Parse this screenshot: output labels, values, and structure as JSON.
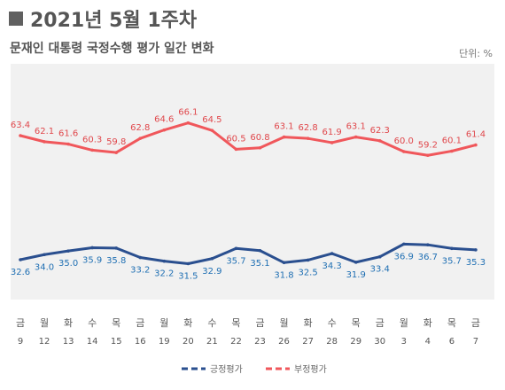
{
  "header": {
    "title": "2021년 5월 1주차",
    "subtitle": "문재인 대통령 국정수행 평가 일간 변화",
    "unit": "단위: %"
  },
  "colors": {
    "positive": "#2a4f8f",
    "negative": "#f0575b",
    "positive_label": "#1f6fb3",
    "negative_label": "#e0474b",
    "plot_bg": "#f1f1f1"
  },
  "chart_data": {
    "type": "line",
    "categories": [
      {
        "day": "금",
        "date": "9"
      },
      {
        "day": "월",
        "date": "12"
      },
      {
        "day": "화",
        "date": "13"
      },
      {
        "day": "수",
        "date": "14"
      },
      {
        "day": "목",
        "date": "15"
      },
      {
        "day": "금",
        "date": "16"
      },
      {
        "day": "월",
        "date": "19"
      },
      {
        "day": "화",
        "date": "20"
      },
      {
        "day": "수",
        "date": "21"
      },
      {
        "day": "목",
        "date": "22"
      },
      {
        "day": "금",
        "date": "23"
      },
      {
        "day": "월",
        "date": "26"
      },
      {
        "day": "화",
        "date": "27"
      },
      {
        "day": "수",
        "date": "28"
      },
      {
        "day": "목",
        "date": "29"
      },
      {
        "day": "금",
        "date": "30"
      },
      {
        "day": "월",
        "date": "3"
      },
      {
        "day": "화",
        "date": "4"
      },
      {
        "day": "목",
        "date": "6"
      },
      {
        "day": "금",
        "date": "7"
      }
    ],
    "series": [
      {
        "name": "부정평가",
        "values": [
          63.4,
          62.1,
          61.6,
          60.3,
          59.8,
          62.8,
          64.6,
          66.1,
          64.5,
          60.5,
          60.8,
          63.1,
          62.8,
          61.9,
          63.1,
          62.3,
          60.0,
          59.2,
          60.1,
          61.4
        ]
      },
      {
        "name": "긍정평가",
        "values": [
          32.6,
          34.0,
          35.0,
          35.9,
          35.8,
          33.2,
          32.2,
          31.5,
          32.9,
          35.7,
          35.1,
          31.8,
          32.5,
          34.3,
          31.9,
          33.4,
          36.9,
          36.7,
          35.7,
          35.3
        ]
      }
    ],
    "legend_position": "bottom-right"
  }
}
